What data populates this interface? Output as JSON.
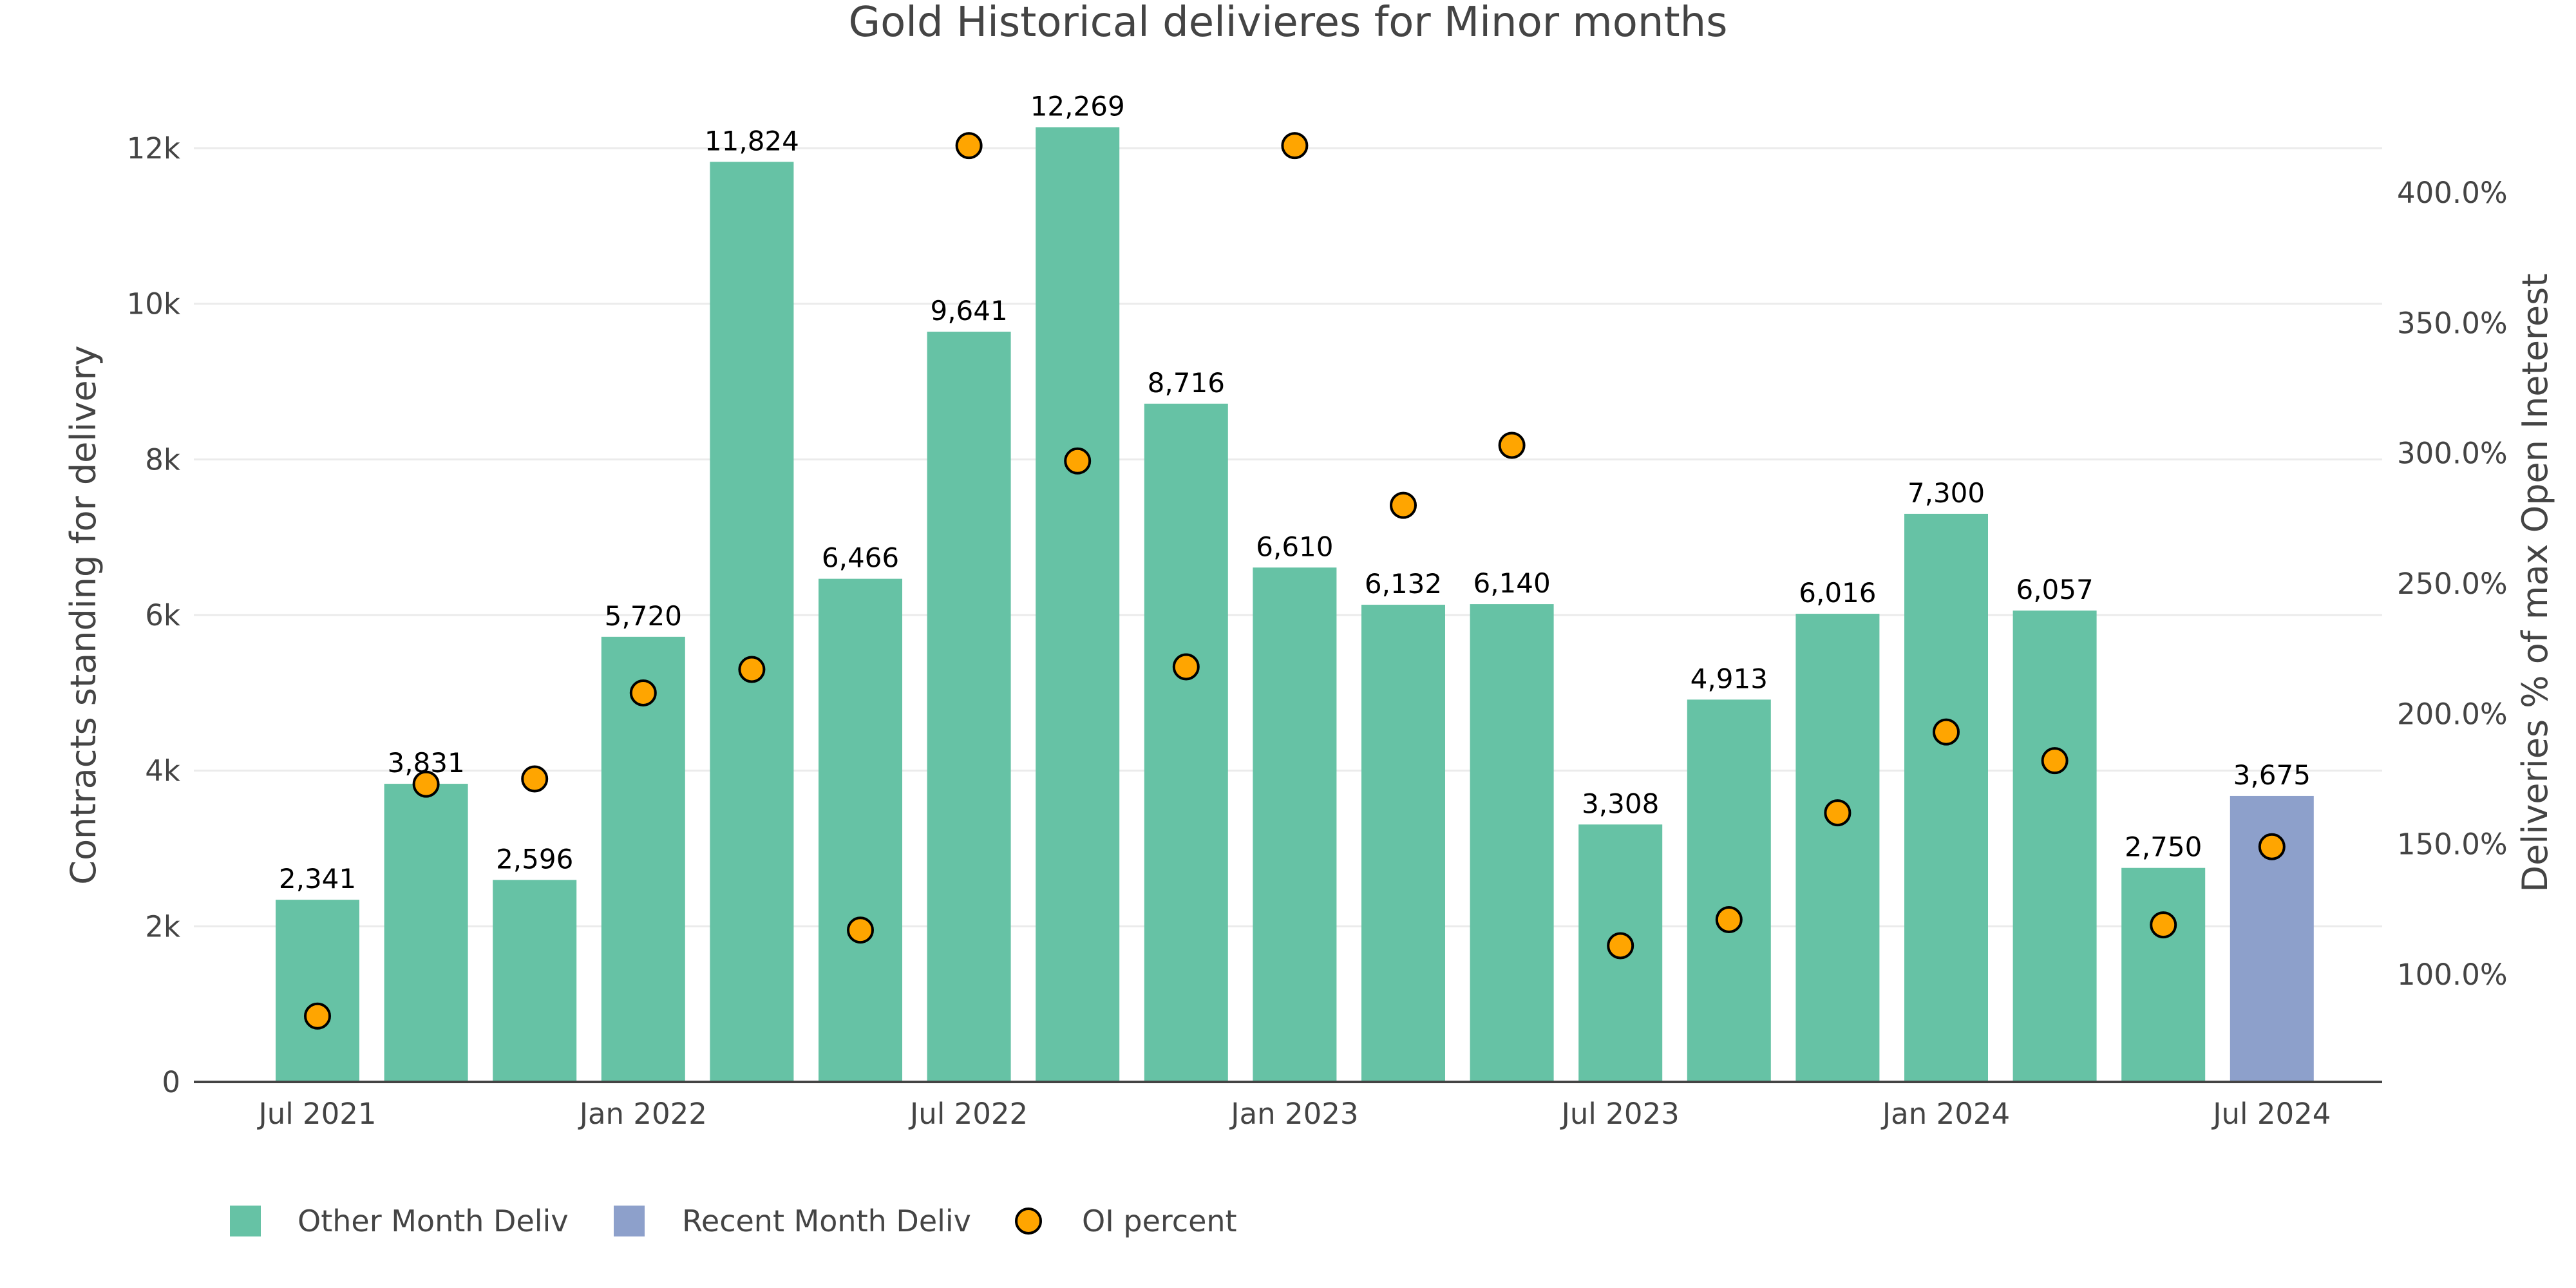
{
  "chart_data": {
    "type": "bar",
    "title": "Gold Historical delivieres for Minor months",
    "xlabel": "",
    "ylabel": "Contracts standing for delivery",
    "y2label": "Deliveries % of max Open Ineterest",
    "categories": [
      "2021-07",
      "2021-09",
      "2021-11",
      "2022-01",
      "2022-03",
      "2022-05",
      "2022-07",
      "2022-09",
      "2022-11",
      "2023-01",
      "2023-03",
      "2023-05",
      "2023-07",
      "2023-09",
      "2023-11",
      "2024-01",
      "2024-03",
      "2024-05",
      "2024-07"
    ],
    "x_tick_labels": [
      "Jul 2021",
      "Jan 2022",
      "Jul 2022",
      "Jan 2023",
      "Jul 2023",
      "Jan 2024",
      "Jul 2024"
    ],
    "x_tick_months": [
      "2021-07",
      "2022-01",
      "2022-07",
      "2023-01",
      "2023-07",
      "2024-01",
      "2024-07"
    ],
    "ylim": [
      0,
      12800
    ],
    "y_ticks": [
      0,
      2000,
      4000,
      6000,
      8000,
      10000,
      12000
    ],
    "y_tick_labels": [
      "0",
      "2k",
      "4k",
      "6k",
      "8k",
      "10k",
      "12k"
    ],
    "y2lim": [
      55,
      445
    ],
    "y2_ticks": [
      100,
      150,
      200,
      250,
      300,
      350,
      400
    ],
    "y2_tick_labels": [
      "100.0%",
      "150.0%",
      "200.0%",
      "250.0%",
      "300.0%",
      "350.0%",
      "400.0%"
    ],
    "grid": true,
    "legend_position": "bottom-left",
    "series": [
      {
        "name": "Other Month Deliv",
        "type": "bar",
        "color": "#66c2a5",
        "values": [
          2341,
          3831,
          2596,
          5720,
          11824,
          6466,
          9641,
          12269,
          8716,
          6610,
          6132,
          6140,
          3308,
          4913,
          6016,
          7300,
          6057,
          2750,
          null
        ],
        "labels": [
          "2,341",
          "3,831",
          "2,596",
          "5,720",
          "11,824",
          "6,466",
          "9,641",
          "12,269",
          "8,716",
          "6,610",
          "6,132",
          "6,140",
          "3,308",
          "4,913",
          "6,016",
          "7,300",
          "6,057",
          "2,750",
          ""
        ]
      },
      {
        "name": "Recent Month Deliv",
        "type": "bar",
        "color": "#8da0cb",
        "values": [
          null,
          null,
          null,
          null,
          null,
          null,
          null,
          null,
          null,
          null,
          null,
          null,
          null,
          null,
          null,
          null,
          null,
          null,
          3675
        ],
        "labels": [
          "",
          "",
          "",
          "",
          "",
          "",
          "",
          "",
          "",
          "",
          "",
          "",
          "",
          "",
          "",
          "",
          "",
          "",
          "3,675"
        ]
      },
      {
        "name": "OI percent",
        "type": "scatter",
        "axis": "y2",
        "color": "#ffa500",
        "values": [
          84,
          173,
          175,
          208,
          217,
          117,
          418,
          297,
          218,
          418,
          280,
          303,
          111,
          121,
          162,
          193,
          182,
          119,
          149
        ]
      }
    ]
  }
}
